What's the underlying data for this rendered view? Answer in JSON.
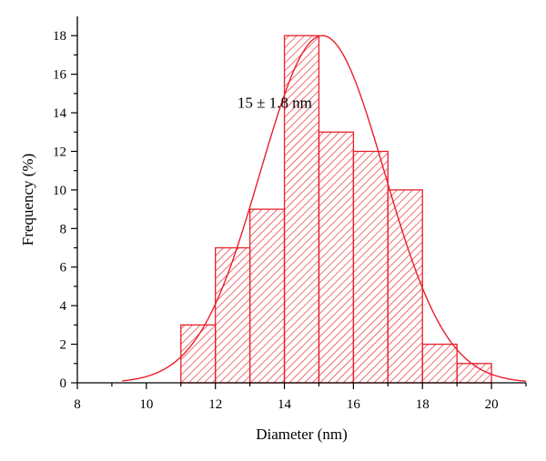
{
  "chart_data": {
    "type": "bar",
    "subtype": "histogram-with-normal-fit",
    "title": "",
    "xlabel": "Diameter (nm)",
    "ylabel": "Frequency (%)",
    "xlim": [
      8,
      21
    ],
    "ylim": [
      0,
      19
    ],
    "xticks": [
      8,
      10,
      12,
      14,
      16,
      18,
      20
    ],
    "yticks": [
      0,
      2,
      4,
      6,
      8,
      10,
      12,
      14,
      16,
      18
    ],
    "bin_width": 1,
    "bins": [
      {
        "start": 11,
        "end": 12,
        "value": 3
      },
      {
        "start": 12,
        "end": 13,
        "value": 7
      },
      {
        "start": 13,
        "end": 14,
        "value": 9
      },
      {
        "start": 14,
        "end": 15,
        "value": 18
      },
      {
        "start": 15,
        "end": 16,
        "value": 13
      },
      {
        "start": 16,
        "end": 17,
        "value": 12
      },
      {
        "start": 17,
        "end": 18,
        "value": 10
      },
      {
        "start": 18,
        "end": 19,
        "value": 2
      },
      {
        "start": 19,
        "end": 20,
        "value": 1
      }
    ],
    "fit": {
      "type": "normal",
      "mean": 15.1,
      "sigma": 1.8,
      "peak": 18,
      "x_range": [
        9.3,
        21
      ]
    },
    "annotation": {
      "text": "15 ± 1.8 nm",
      "x": 12.9,
      "y": 14.6
    },
    "grid": false,
    "legend": "none",
    "colors": {
      "bars": "#e8202a",
      "hatch": "#e8202a",
      "fit_line": "#e8202a",
      "axes": "#000000"
    }
  }
}
